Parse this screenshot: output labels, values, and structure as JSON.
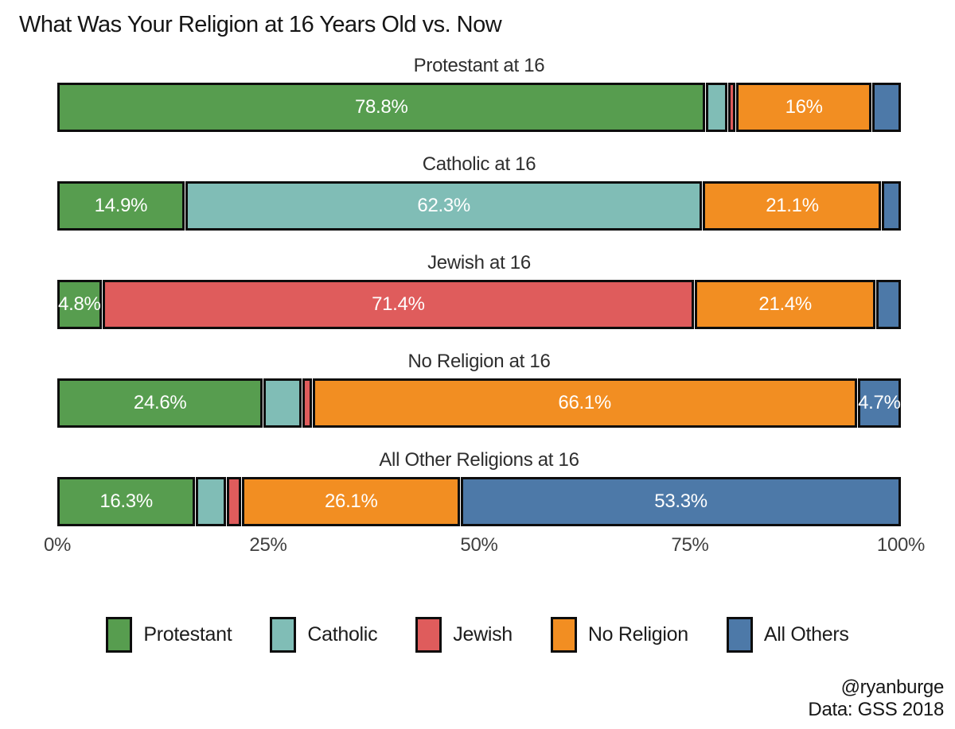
{
  "title": "What Was Your Religion at 16 Years Old vs. Now",
  "attribution": {
    "line1": "@ryanburge",
    "line2": "Data: GSS 2018"
  },
  "colors": {
    "protestant": "#579d4f",
    "catholic": "#80bdb6",
    "jewish": "#df5c5c",
    "no_religion": "#f28e22",
    "all_others": "#4d79a8",
    "segment_border": "#0d0d0d",
    "background": "#ffffff"
  },
  "chart_data": {
    "type": "bar",
    "stacked": true,
    "orientation": "horizontal",
    "unit": "%",
    "xlim": [
      0,
      100
    ],
    "grid": false,
    "legend_position": "bottom-center",
    "categories": [
      "Protestant at 16",
      "Catholic at 16",
      "Jewish at 16",
      "No Religion at 16",
      "All Other Religions at 16"
    ],
    "series": [
      {
        "name": "Protestant",
        "color": "#579d4f",
        "values": [
          78.8,
          14.9,
          4.8,
          24.6,
          16.3
        ],
        "labels": [
          "78.8%",
          "14.9%",
          "4.8%",
          "24.6%",
          "16.3%"
        ]
      },
      {
        "name": "Catholic",
        "color": "#80bdb6",
        "values": [
          2.0,
          62.3,
          0,
          4.1,
          3.1
        ],
        "labels": [
          "",
          "62.3%",
          "",
          "",
          ""
        ]
      },
      {
        "name": "Jewish",
        "color": "#df5c5c",
        "values": [
          0.3,
          0,
          71.4,
          0.5,
          1.2
        ],
        "labels": [
          "",
          "",
          "71.4%",
          "",
          ""
        ]
      },
      {
        "name": "No Religion",
        "color": "#f28e22",
        "values": [
          16.0,
          21.1,
          21.4,
          66.1,
          26.1
        ],
        "labels": [
          "16%",
          "21.1%",
          "21.4%",
          "66.1%",
          "26.1%"
        ]
      },
      {
        "name": "All Others",
        "color": "#4d79a8",
        "values": [
          2.9,
          1.7,
          2.4,
          4.7,
          53.3
        ],
        "labels": [
          "",
          "",
          "",
          "4.7%",
          "53.3%"
        ]
      }
    ],
    "x_ticks": [
      {
        "value": 0,
        "label": "0%"
      },
      {
        "value": 25,
        "label": "25%"
      },
      {
        "value": 50,
        "label": "50%"
      },
      {
        "value": 75,
        "label": "75%"
      },
      {
        "value": 100,
        "label": "100%"
      }
    ],
    "legend_entries": [
      "Protestant",
      "Catholic",
      "Jewish",
      "No Religion",
      "All Others"
    ]
  }
}
